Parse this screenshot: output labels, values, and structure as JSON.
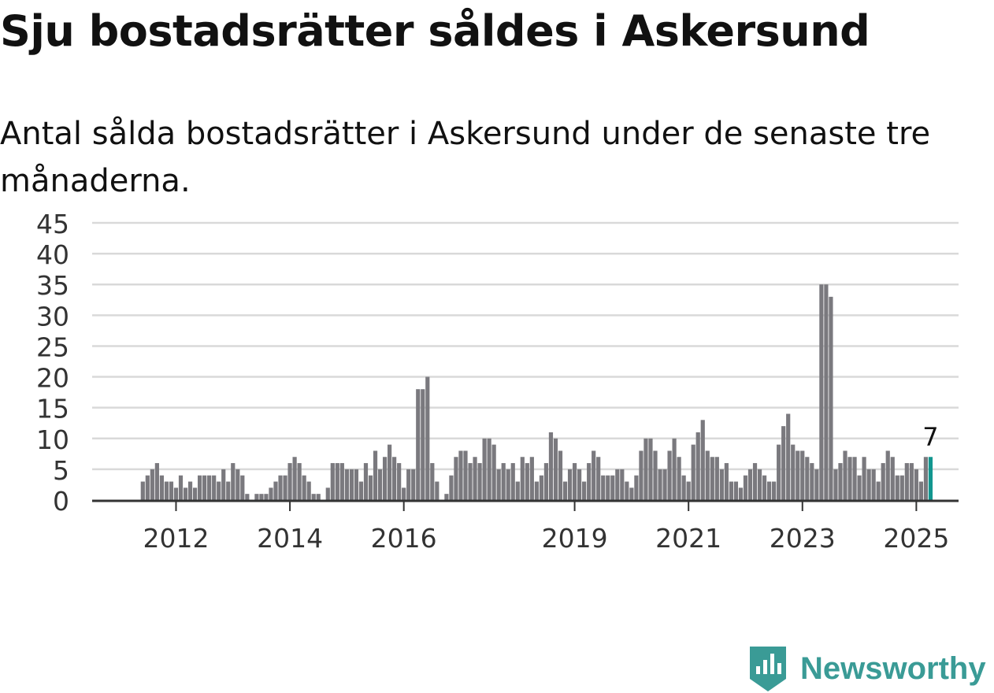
{
  "title": "Sju bostadsrätter såldes i Askersund",
  "subtitle": "Antal sålda bostadsrätter i Askersund under de senaste tre månaderna.",
  "brand": {
    "name": "Newsworthy",
    "color": "#3a9b96",
    "icon": "newsworthy-logo-icon"
  },
  "chart_data": {
    "type": "bar",
    "title": "Sju bostadsrätter såldes i Askersund",
    "xlabel": "",
    "ylabel": "",
    "ylim": [
      0,
      45
    ],
    "yticks": [
      "0",
      "5",
      "10",
      "15",
      "20",
      "25",
      "30",
      "35",
      "40",
      "45"
    ],
    "xticks": [
      {
        "label": "2012",
        "year": 2012
      },
      {
        "label": "2014",
        "year": 2014
      },
      {
        "label": "2016",
        "year": 2016
      },
      {
        "label": "2019",
        "year": 2019
      },
      {
        "label": "2021",
        "year": 2021
      },
      {
        "label": "2023",
        "year": 2023
      },
      {
        "label": "2025",
        "year": 2025
      }
    ],
    "start": {
      "year": 2011,
      "month": 1
    },
    "values": [
      0,
      0,
      0,
      0,
      0,
      0,
      0,
      0,
      0,
      0,
      0,
      0,
      3,
      4,
      5,
      6,
      4,
      3,
      3,
      2,
      4,
      2,
      3,
      2,
      4,
      4,
      4,
      4,
      3,
      5,
      3,
      6,
      5,
      4,
      1,
      0,
      1,
      1,
      1,
      2,
      3,
      4,
      4,
      6,
      7,
      6,
      4,
      3,
      1,
      1,
      0,
      2,
      6,
      6,
      6,
      5,
      5,
      5,
      3,
      6,
      4,
      8,
      5,
      7,
      9,
      7,
      6,
      2,
      5,
      5,
      18,
      18,
      20,
      6,
      3,
      0,
      1,
      4,
      7,
      8,
      8,
      6,
      7,
      6,
      10,
      10,
      9,
      5,
      6,
      5,
      6,
      3,
      7,
      6,
      7,
      3,
      4,
      6,
      11,
      10,
      8,
      3,
      5,
      6,
      5,
      3,
      6,
      8,
      7,
      4,
      4,
      4,
      5,
      5,
      3,
      2,
      4,
      8,
      10,
      10,
      8,
      5,
      5,
      8,
      10,
      7,
      4,
      3,
      9,
      11,
      13,
      8,
      7,
      7,
      5,
      6,
      3,
      3,
      2,
      4,
      5,
      6,
      5,
      4,
      3,
      3,
      9,
      12,
      14,
      9,
      8,
      8,
      7,
      6,
      5,
      35,
      35,
      33,
      5,
      6,
      8,
      7,
      7,
      4,
      7,
      5,
      5,
      3,
      6,
      8,
      7,
      4,
      4,
      6,
      6,
      5,
      3,
      7,
      7
    ],
    "highlight": {
      "label": "7",
      "value": 7,
      "color": "#12968f"
    },
    "bar_color": "#7a797e",
    "grid": true
  }
}
